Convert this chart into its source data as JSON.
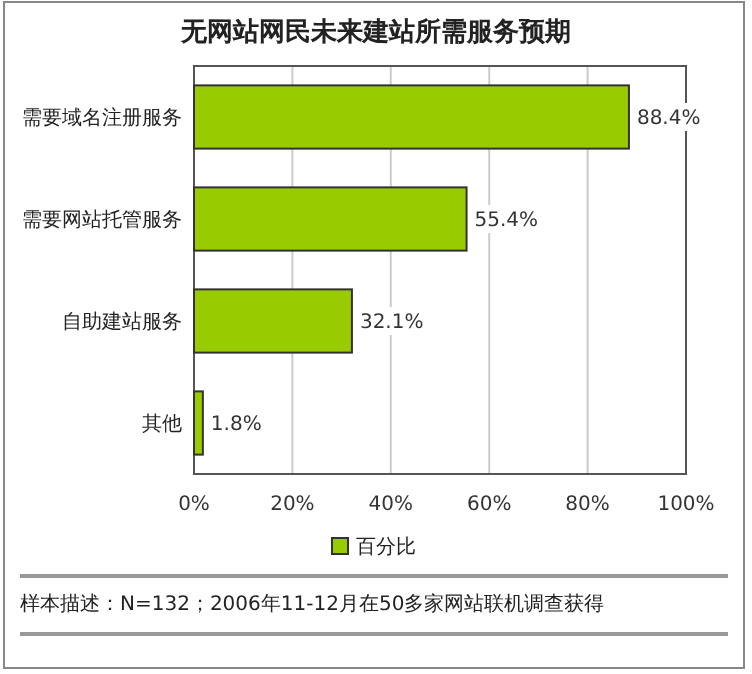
{
  "chart_data": {
    "type": "bar",
    "orientation": "horizontal",
    "title": "无网站网民未来建站所需服务预期",
    "categories": [
      "需要域名注册服务",
      "需要网站托管服务",
      "自助建站服务",
      "其他"
    ],
    "series": [
      {
        "name": "百分比",
        "color": "#99cc00",
        "values": [
          88.4,
          55.4,
          32.1,
          1.8
        ],
        "value_labels": [
          "88.4%",
          "55.4%",
          "32.1%",
          "1.8%"
        ]
      }
    ],
    "xlim": [
      0,
      100
    ],
    "xticks": [
      {
        "value": 0,
        "label": "0%"
      },
      {
        "value": 20,
        "label": "20%"
      },
      {
        "value": 40,
        "label": "40%"
      },
      {
        "value": 60,
        "label": "60%"
      },
      {
        "value": 80,
        "label": "80%"
      },
      {
        "value": 100,
        "label": "100%"
      }
    ],
    "grid": "x",
    "legend": "bottom",
    "annotations": [
      "样本描述：N=132；2006年11-12月在50多家网站联机调查获得"
    ]
  }
}
